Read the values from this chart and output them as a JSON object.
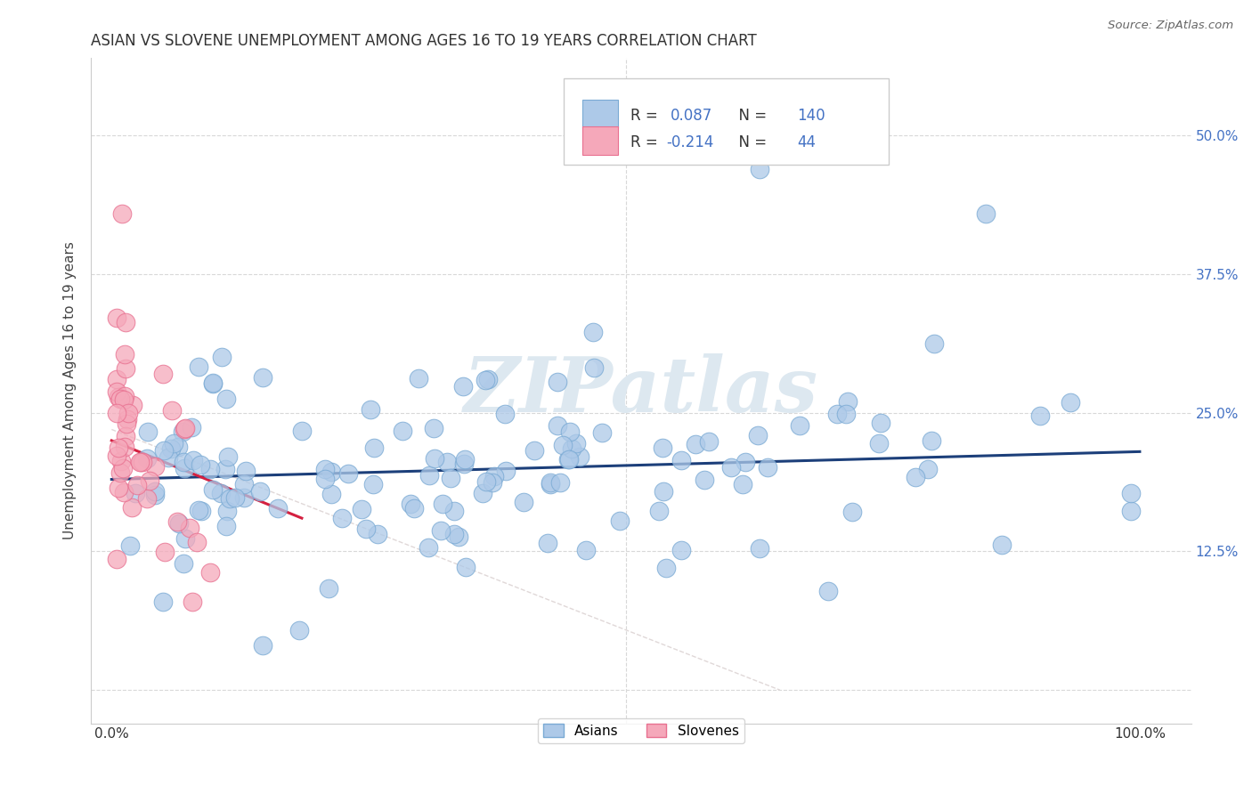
{
  "title": "ASIAN VS SLOVENE UNEMPLOYMENT AMONG AGES 16 TO 19 YEARS CORRELATION CHART",
  "source": "Source: ZipAtlas.com",
  "ylabel": "Unemployment Among Ages 16 to 19 years",
  "xlim": [
    -0.02,
    1.05
  ],
  "ylim": [
    -0.03,
    0.57
  ],
  "xticks": [
    0.0,
    0.2,
    0.4,
    0.6,
    0.8,
    1.0
  ],
  "xticklabels": [
    "0.0%",
    "",
    "",
    "",
    "",
    "100.0%"
  ],
  "yticks": [
    0.0,
    0.125,
    0.25,
    0.375,
    0.5
  ],
  "yticklabels_right": [
    "",
    "12.5%",
    "25.0%",
    "37.5%",
    "50.0%"
  ],
  "asian_color": "#adc9e8",
  "slovene_color": "#f5a8ba",
  "asian_edge_color": "#7aaad4",
  "slovene_edge_color": "#e87090",
  "asian_line_color": "#1c3f7a",
  "slovene_line_color": "#d42040",
  "diag_line_color": "#e0d8d8",
  "grid_color": "#d8d8d8",
  "watermark": "ZIPatlas",
  "watermark_color": "#dde8f0",
  "tick_color": "#4472c4",
  "legend_asian_r": "0.087",
  "legend_asian_n": "140",
  "legend_slovene_r": "-0.214",
  "legend_slovene_n": "44",
  "asian_line_x0": 0.0,
  "asian_line_x1": 1.0,
  "asian_line_y0": 0.19,
  "asian_line_y1": 0.215,
  "slovene_line_x0": 0.0,
  "slovene_line_x1": 0.185,
  "slovene_line_y0": 0.225,
  "slovene_line_y1": 0.155
}
